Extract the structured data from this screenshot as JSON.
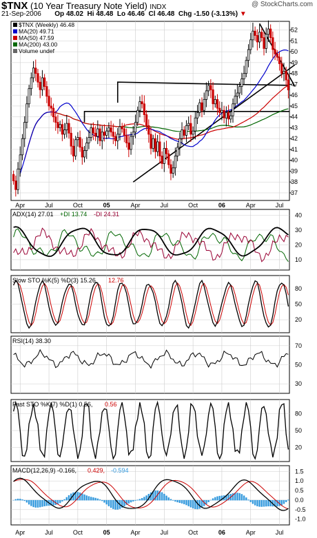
{
  "header": {
    "symbol": "$TNX",
    "name": "(10 Year Treasury Note Yield)",
    "exchange": "INDX",
    "date": "21-Sep-2006",
    "open": "Op 48.02",
    "high": "Hi 48.48",
    "low": "Lo 46.46",
    "close": "Cl 46.48",
    "change": "Chg -1.50 (-3.13%)",
    "change_arrow": "▼",
    "watermark": "@ StockCharts.com"
  },
  "colors": {
    "up": "#000000",
    "down": "#cc0000",
    "ma20": "#0000cc",
    "ma50": "#cc0000",
    "ma200": "#006600",
    "hist": "#3399dd",
    "grid": "#cccccc"
  },
  "chart_data": [
    {
      "type": "candlestick",
      "panel": "price",
      "legend": [
        "$TNX (Weekly) 46.48",
        "MA(20) 49.71",
        "MA(50) 47.59",
        "MA(200) 43.00",
        "Volume undef"
      ],
      "x_tick_labels": [
        "Apr",
        "Jul",
        "Oct",
        "05",
        "Apr",
        "Jul",
        "Oct",
        "06",
        "Apr",
        "Jul"
      ],
      "y_ticks": [
        37,
        38,
        39,
        40,
        41,
        42,
        43,
        44,
        45,
        46,
        47,
        48,
        49,
        50,
        51,
        52
      ],
      "ylim": [
        36.3,
        52.8
      ],
      "close": [
        38.1,
        37.3,
        39.2,
        40.5,
        42.0,
        43.5,
        45.2,
        46.6,
        47.6,
        48.5,
        48.0,
        47.2,
        46.5,
        47.6,
        46.8,
        45.9,
        45.0,
        44.8,
        44.0,
        43.5,
        43.0,
        43.3,
        42.4,
        42.8,
        43.4,
        42.5,
        41.3,
        40.4,
        41.9,
        42.1,
        41.2,
        40.3,
        40.9,
        41.6,
        42.1,
        43.0,
        42.5,
        42.2,
        42.9,
        41.8,
        42.6,
        42.3,
        42.7,
        43.0,
        42.6,
        42.2,
        41.8,
        42.4,
        43.1,
        42.9,
        42.3,
        41.6,
        41.0,
        42.2,
        42.6,
        43.5,
        44.6,
        45.4,
        45.2,
        44.2,
        43.2,
        42.4,
        41.1,
        42.0,
        40.8,
        41.7,
        40.4,
        39.7,
        41.1,
        40.6,
        39.6,
        38.8,
        39.3,
        40.4,
        41.2,
        42.0,
        42.8,
        42.3,
        43.2,
        43.4,
        42.4,
        42.7,
        43.9,
        44.4,
        45.3,
        44.6,
        45.6,
        46.4,
        46.9,
        46.5,
        45.2,
        45.6,
        44.8,
        44.4,
        44.6,
        43.9,
        44.4,
        43.8,
        44.1,
        45.2,
        45.9,
        46.2,
        46.8,
        47.5,
        48.0,
        49.2,
        50.2,
        51.1,
        51.9,
        51.5,
        50.9,
        51.8,
        51.3,
        50.3,
        51.6,
        52.1,
        51.3,
        50.2,
        49.8,
        49.5,
        48.9,
        48.0,
        48.2,
        47.4,
        46.48
      ],
      "ma20_last": 49.71,
      "ma50_last": 47.59,
      "ma200_last": 43.0,
      "annotations": "trendlines and horizontal support/resistance lines"
    },
    {
      "type": "line",
      "panel": "adx",
      "label_parts": [
        "ADX(14) 27.01",
        "+DI 13.74",
        "-DI 24.31"
      ],
      "y_ticks": [
        10,
        20,
        30,
        40
      ],
      "ylim": [
        3,
        44
      ],
      "series": [
        {
          "name": "ADX(14)",
          "last": 27.01
        },
        {
          "name": "+DI",
          "last": 13.74
        },
        {
          "name": "-DI",
          "last": 24.31
        }
      ]
    },
    {
      "type": "line",
      "panel": "slowsto",
      "label_parts": [
        "Slow STO %K(5) %D(3) 15.26,",
        "12.76"
      ],
      "y_ticks": [
        20,
        50,
        80
      ],
      "ylim": [
        -5,
        105
      ],
      "series": [
        {
          "name": "%K(5)",
          "last": 15.26
        },
        {
          "name": "%D(3)",
          "last": 12.76
        }
      ]
    },
    {
      "type": "line",
      "panel": "rsi",
      "label_parts": [
        "RSI(14) 38.30"
      ],
      "y_ticks": [
        30,
        50,
        70
      ],
      "ylim": [
        20,
        80
      ],
      "series": [
        {
          "name": "RSI(14)",
          "last": 38.3
        }
      ]
    },
    {
      "type": "line",
      "panel": "faststo",
      "label_parts": [
        "Fast STO %K(7) %D(1) 0.56,",
        "0.56"
      ],
      "y_ticks": [
        20,
        50,
        80
      ],
      "ylim": [
        -5,
        105
      ],
      "series": [
        {
          "name": "%K(7)",
          "last": 0.56
        },
        {
          "name": "%D(1)",
          "last": 0.56
        }
      ]
    },
    {
      "type": "line+bar",
      "panel": "macd",
      "label_parts": [
        "MACD(12,26,9) -0.166,",
        "0.429,",
        "-0.594"
      ],
      "y_ticks": [
        "1.5",
        "1.0",
        "0.5",
        "0.0",
        "-0.5",
        "-1.0"
      ],
      "ylim": [
        -1.3,
        1.8
      ],
      "series": [
        {
          "name": "MACD",
          "last": -0.166
        },
        {
          "name": "Signal",
          "last": 0.429
        },
        {
          "name": "Histogram",
          "last": -0.594
        }
      ]
    }
  ]
}
